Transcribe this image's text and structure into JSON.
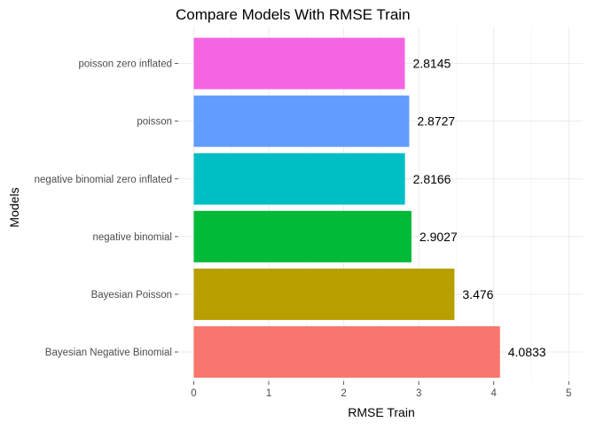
{
  "chart_data": {
    "type": "bar",
    "orientation": "horizontal",
    "title": "Compare Models With RMSE Train",
    "xlabel": "RMSE Train",
    "ylabel": "Models",
    "xlim": [
      0,
      5
    ],
    "x_ticks": [
      "0",
      "1",
      "2",
      "3",
      "4",
      "5"
    ],
    "grid": true,
    "legend": "none",
    "categories": [
      "Bayesian Negative Binomial",
      "Bayesian Poisson",
      "negative binomial",
      "negative binomial zero inflated",
      "poisson",
      "poisson zero inflated"
    ],
    "values": [
      4.0833,
      3.476,
      2.9027,
      2.8166,
      2.8727,
      2.8145
    ],
    "value_labels": [
      "4.0833",
      "3.476",
      "2.9027",
      "2.8166",
      "2.8727",
      "2.8145"
    ],
    "colors": [
      "#F8766D",
      "#B79F00",
      "#00BA38",
      "#00BFC4",
      "#619CFF",
      "#F564E3"
    ]
  }
}
